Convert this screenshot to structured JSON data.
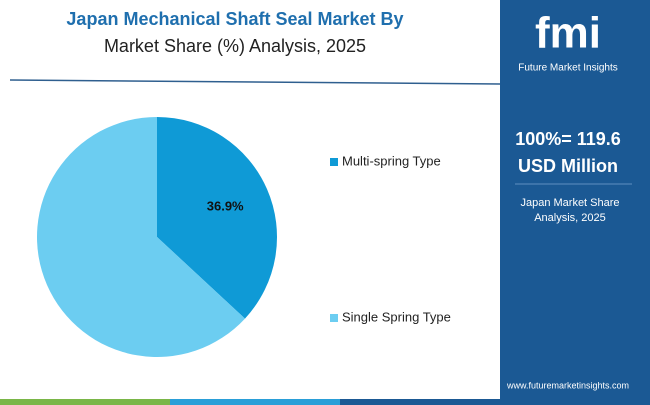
{
  "chart_data": {
    "type": "pie",
    "title": "Japan Mechanical Shaft Seal Market By",
    "subtitle": "Market Share (%) Analysis, 2025",
    "categories": [
      "Multi-spring Type",
      "Single Spring Type"
    ],
    "values": [
      36.9,
      63.1
    ],
    "value_labels": [
      "36.9%",
      null
    ],
    "colors": [
      "#0f9ad6",
      "#6ccdf1"
    ]
  },
  "panel": {
    "logo": "fmi",
    "brand": "Future Market Insights",
    "total": "100%= 119.6",
    "unit": "USD Million",
    "caption": "Japan Market Share Analysis, 2025",
    "website": "www.futuremarketinsights.com"
  }
}
